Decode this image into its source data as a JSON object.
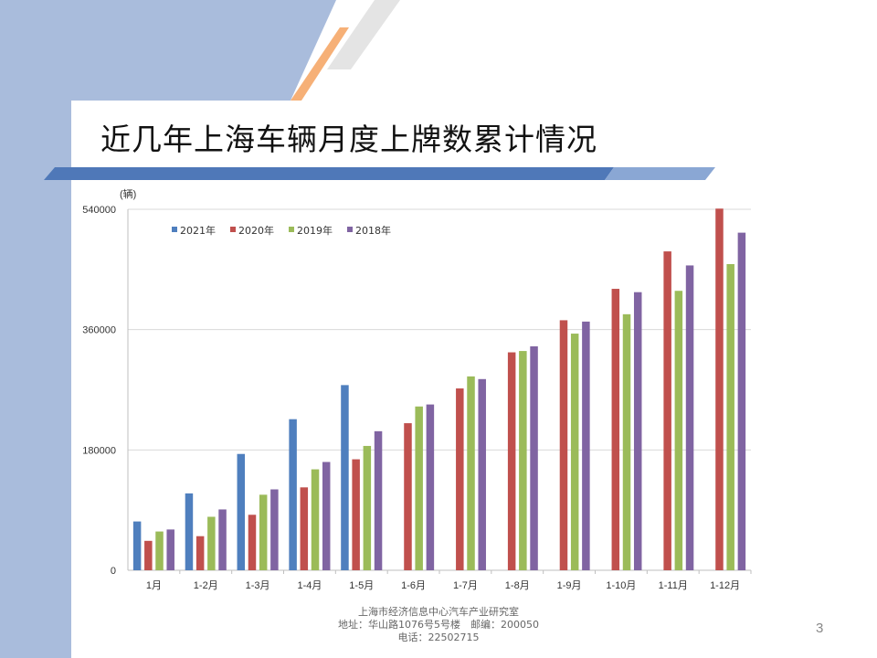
{
  "slide": {
    "title": "近几年上海车辆月度上牌数累计情况",
    "page_number": "3",
    "footer": {
      "org": "上海市经济信息中心汽车产业研究室",
      "address": "地址：华山路1076号5号楼　邮编：200050",
      "phone": "电话：22502715"
    }
  },
  "colors": {
    "left_band": "#a9bcdc",
    "title_bar_dark": "#4f78b8",
    "title_bar_light": "#8aa7d4",
    "accent_orange": "#f6b077",
    "accent_gray": "#e4e4e4",
    "grid": "#d9d9d9"
  },
  "chart_data": {
    "type": "bar",
    "title": "",
    "unit_label": "(辆)",
    "categories": [
      "1月",
      "1-2月",
      "1-3月",
      "1-4月",
      "1-5月",
      "1-6月",
      "1-7月",
      "1-8月",
      "1-9月",
      "1-10月",
      "1-11月",
      "1-12月"
    ],
    "series": [
      {
        "name": "2021年",
        "color": "#4f7fbe",
        "values": [
          73000,
          115000,
          174000,
          226000,
          277000,
          null,
          null,
          null,
          null,
          null,
          null,
          null
        ]
      },
      {
        "name": "2020年",
        "color": "#c0504d",
        "values": [
          44000,
          51000,
          83000,
          124000,
          166000,
          220000,
          272000,
          326000,
          374000,
          421000,
          477000,
          541000
        ]
      },
      {
        "name": "2019年",
        "color": "#9bbb59",
        "values": [
          58000,
          80000,
          113000,
          151000,
          186000,
          245000,
          290000,
          328000,
          354000,
          383000,
          418000,
          458000
        ]
      },
      {
        "name": "2018年",
        "color": "#8064a2",
        "values": [
          61000,
          91000,
          121000,
          162000,
          208000,
          248000,
          286000,
          335000,
          372000,
          416000,
          456000,
          505000
        ]
      }
    ],
    "yticks": [
      0,
      180000,
      360000,
      540000
    ],
    "ylim": [
      0,
      540000
    ],
    "grid": true,
    "legend_position": "top-left"
  }
}
